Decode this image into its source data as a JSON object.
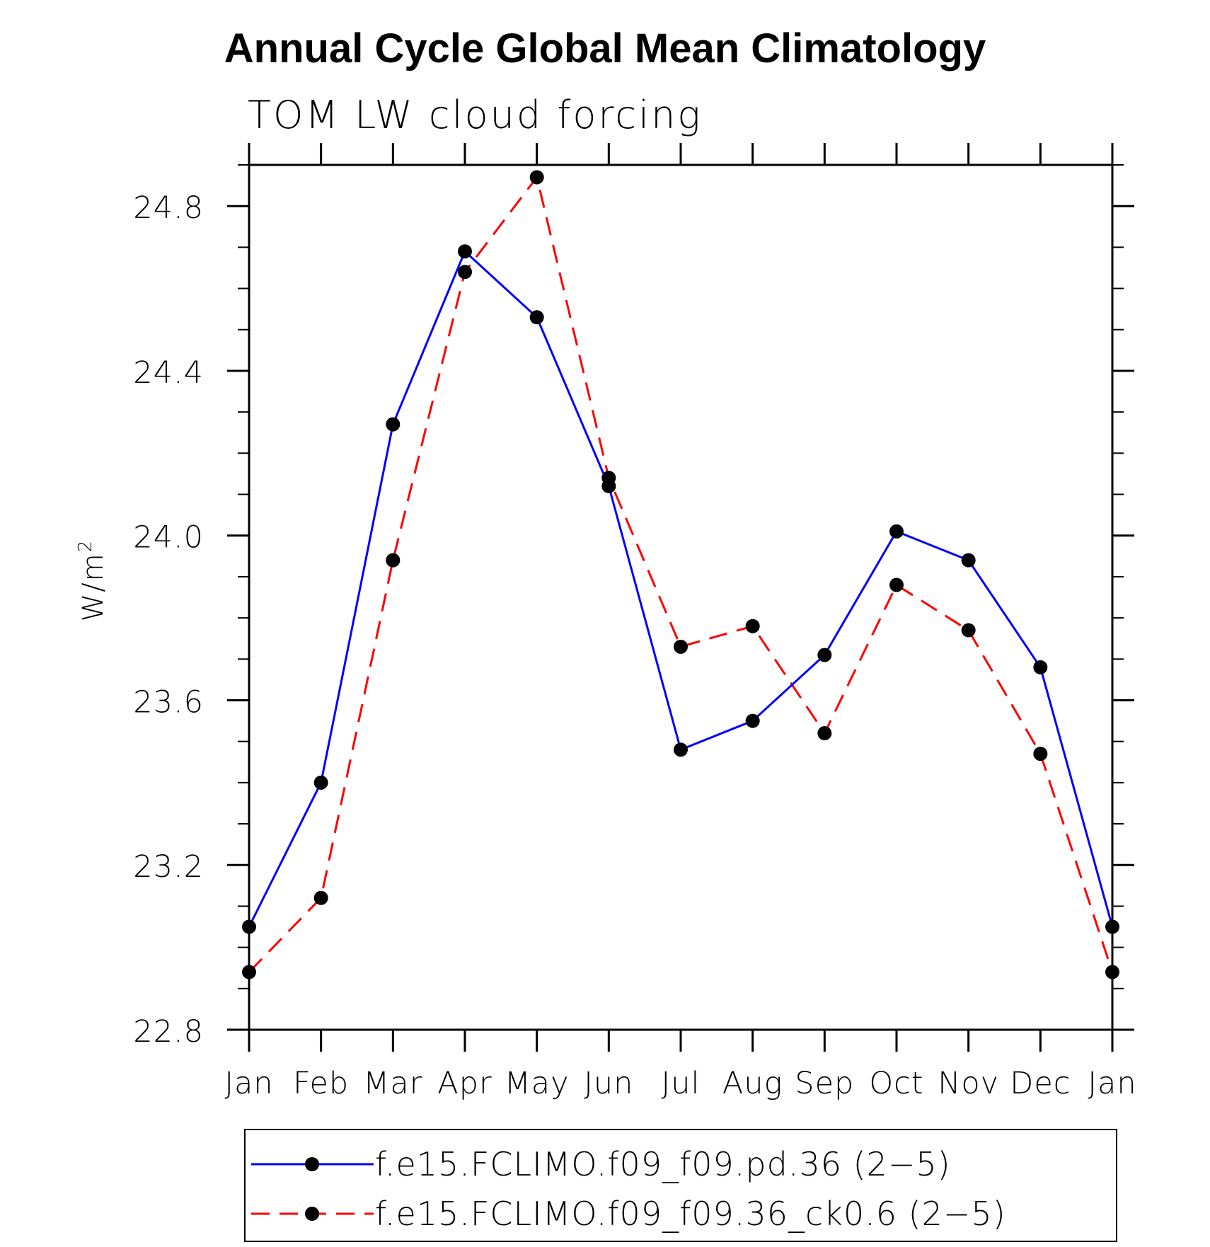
{
  "chart_data": {
    "type": "line",
    "title": "Annual Cycle Global Mean Climatology",
    "subtitle": "TOM LW cloud forcing",
    "xlabel": "",
    "ylabel_base": "W/m",
    "ylabel_sup": "2",
    "categories": [
      "Jan",
      "Feb",
      "Mar",
      "Apr",
      "May",
      "Jun",
      "Jul",
      "Aug",
      "Sep",
      "Oct",
      "Nov",
      "Dec",
      "Jan"
    ],
    "ylim": [
      22.8,
      24.9
    ],
    "yticks": [
      22.8,
      23.2,
      23.6,
      24.0,
      24.4,
      24.8
    ],
    "ytick_labels": [
      "22.8",
      "23.2",
      "23.6",
      "24.0",
      "24.4",
      "24.8"
    ],
    "y_minor_step": 0.1,
    "grid": false,
    "legend_position": "bottom",
    "series": [
      {
        "name": "f.e15.FCLIMO.f09_f09.pd.36 (2−5)",
        "color": "#0000ff",
        "dash": "solid",
        "marker": "filled-circle",
        "values": [
          23.05,
          23.4,
          24.27,
          24.69,
          24.53,
          24.12,
          23.48,
          23.55,
          23.71,
          24.01,
          23.94,
          23.68,
          23.05
        ]
      },
      {
        "name": "f.e15.FCLIMO.f09_f09.36_ck0.6 (2−5)",
        "color": "#ff0000",
        "dash": "dashed",
        "marker": "filled-circle",
        "values": [
          22.94,
          23.12,
          23.94,
          24.64,
          24.87,
          24.14,
          23.73,
          23.78,
          23.52,
          23.88,
          23.77,
          23.47,
          22.94
        ]
      }
    ]
  }
}
